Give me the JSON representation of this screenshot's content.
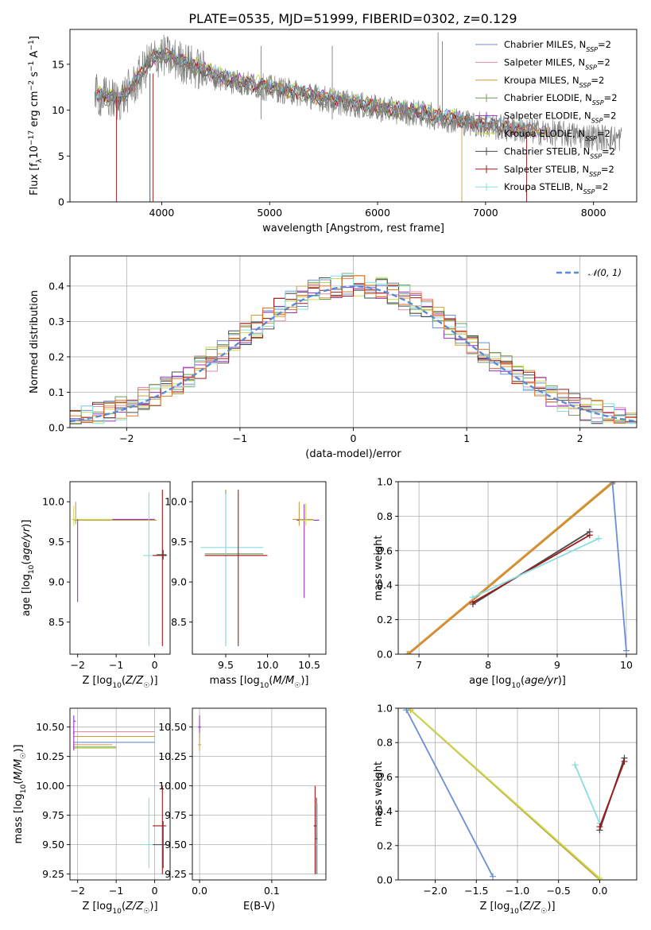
{
  "figure": {
    "title": "PLATE=0535, MJD=51999, FIBERID=0302, z=0.129"
  },
  "legend_names": [
    "Chabrier MILES, N",
    "Salpeter MILES, N",
    "Kroupa MILES, N",
    "Chabrier ELODIE, N",
    "Salpeter ELODIE, N",
    "Kroupa ELODIE, N",
    "Chabrier STELIB, N",
    "Salpeter STELIB, N",
    "Kroupa STELIB, N"
  ],
  "legend_sub": "SSP",
  "legend_suffix": "=2",
  "colors": {
    "chabrier_miles": "#6a8fd4",
    "salpeter_miles": "#e08ab0",
    "kroupa_miles": "#c8a040",
    "chabrier_elodie": "#6f9a5a",
    "salpeter_elodie": "#9b30c4",
    "kroupa_elodie": "#c6dd50",
    "chabrier_stelib": "#4a4a4a",
    "salpeter_stelib": "#a01818",
    "kroupa_stelib": "#88dde0",
    "spectrum": "#808080",
    "normal": "#5a8ad6",
    "orange": "#e8702a"
  },
  "chart_data": [
    {
      "id": "spectrum",
      "type": "line",
      "title": "PLATE=0535, MJD=51999, FIBERID=0302, z=0.129",
      "xlabel": "wavelength [Angstrom, rest frame]",
      "ylabel_parts": [
        "Flux [f",
        "λ",
        "10",
        "−17",
        " erg cm",
        "−2",
        " s",
        "−1",
        " A",
        "−1",
        "]"
      ],
      "xlim": [
        3150,
        8400
      ],
      "ylim": [
        0,
        18.8
      ],
      "xticks": [
        "4000",
        "5000",
        "6000",
        "7000",
        "8000"
      ],
      "yticks": [
        "0",
        "5",
        "10",
        "15"
      ],
      "continuum": [
        [
          3400,
          11.6
        ],
        [
          3600,
          11.0
        ],
        [
          3750,
          12.8
        ],
        [
          3900,
          15.5
        ],
        [
          4000,
          16.0
        ],
        [
          4200,
          15.2
        ],
        [
          4500,
          13.6
        ],
        [
          4800,
          12.8
        ],
        [
          5200,
          12.0
        ],
        [
          5600,
          11.0
        ],
        [
          6000,
          10.2
        ],
        [
          6400,
          9.6
        ],
        [
          6800,
          8.7
        ],
        [
          7200,
          8.0
        ],
        [
          7600,
          7.5
        ],
        [
          8000,
          7.1
        ],
        [
          8200,
          6.9
        ]
      ],
      "legend_placement": "upper right"
    },
    {
      "id": "residuals",
      "type": "histogram",
      "xlabel": "(data-model)/error",
      "ylabel": "Normed distribution",
      "xlim": [
        -2.5,
        2.5
      ],
      "ylim": [
        0,
        0.485
      ],
      "xticks": [
        "−2",
        "−1",
        "0",
        "1",
        "2"
      ],
      "yticks": [
        "0.0",
        "0.1",
        "0.2",
        "0.3",
        "0.4"
      ],
      "grid": true,
      "reference_label": "𝒩(0, 1)",
      "bin_width": 0.1,
      "legend_placement": "upper right"
    },
    {
      "id": "age_vs_Z",
      "type": "errorbar",
      "xlabel": "Z [log10(Z/Z☉)]",
      "ylabel": "age  [log10(age/yr)]",
      "xlim": [
        -2.2,
        0.4
      ],
      "ylim": [
        8.1,
        10.25
      ],
      "xticks": [
        "−2",
        "−1",
        "0"
      ],
      "yticks": [
        "8.5",
        "9.0",
        "9.5",
        "10.0"
      ]
    },
    {
      "id": "age_vs_mass",
      "type": "errorbar",
      "xlabel": "mass [log10(M/M☉)]",
      "ylabel": "",
      "xlim": [
        9.1,
        10.7
      ],
      "ylim": [
        8.1,
        10.25
      ],
      "xticks": [
        "9.5",
        "10.0",
        "10.5"
      ],
      "yticks": [
        "8.5",
        "9.0",
        "9.5",
        "10.0"
      ]
    },
    {
      "id": "weight_vs_age",
      "type": "line",
      "xlabel": "age  [log10(age/yr)]",
      "ylabel": "mass weight",
      "xlim": [
        6.7,
        10.15
      ],
      "ylim": [
        0,
        1
      ],
      "xticks": [
        "7",
        "8",
        "9",
        "10"
      ],
      "yticks": [
        "0.0",
        "0.2",
        "0.4",
        "0.6",
        "0.8",
        "1.0"
      ],
      "grid": true
    },
    {
      "id": "mass_vs_Z",
      "type": "errorbar",
      "xlabel": "Z [log10(Z/Z☉)]",
      "ylabel": "mass [log10(M/M☉)]",
      "xlim": [
        -2.2,
        0.4
      ],
      "ylim": [
        9.2,
        10.66
      ],
      "xticks": [
        "−2",
        "−1",
        "0"
      ],
      "yticks": [
        "9.25",
        "9.50",
        "9.75",
        "10.00",
        "10.25",
        "10.50"
      ],
      "grid": true
    },
    {
      "id": "mass_vs_ebv",
      "type": "errorbar",
      "xlabel": "E(B-V)",
      "ylabel": "",
      "xlim": [
        -0.01,
        0.175
      ],
      "ylim": [
        9.2,
        10.66
      ],
      "xticks": [
        "0.0",
        "0.1"
      ],
      "yticks": [
        "9.25",
        "9.50",
        "9.75",
        "10.00",
        "10.25",
        "10.50"
      ],
      "grid": true
    },
    {
      "id": "weight_vs_Z",
      "type": "line",
      "xlabel": "Z [log10(Z/Z☉)]",
      "ylabel": "mass weight",
      "xlim": [
        -2.45,
        0.45
      ],
      "ylim": [
        0,
        1
      ],
      "xticks": [
        "−2.0",
        "−1.5",
        "−1.0",
        "−0.5",
        "0.0"
      ],
      "yticks": [
        "0.0",
        "0.2",
        "0.4",
        "0.6",
        "0.8",
        "1.0"
      ],
      "grid": true
    }
  ]
}
